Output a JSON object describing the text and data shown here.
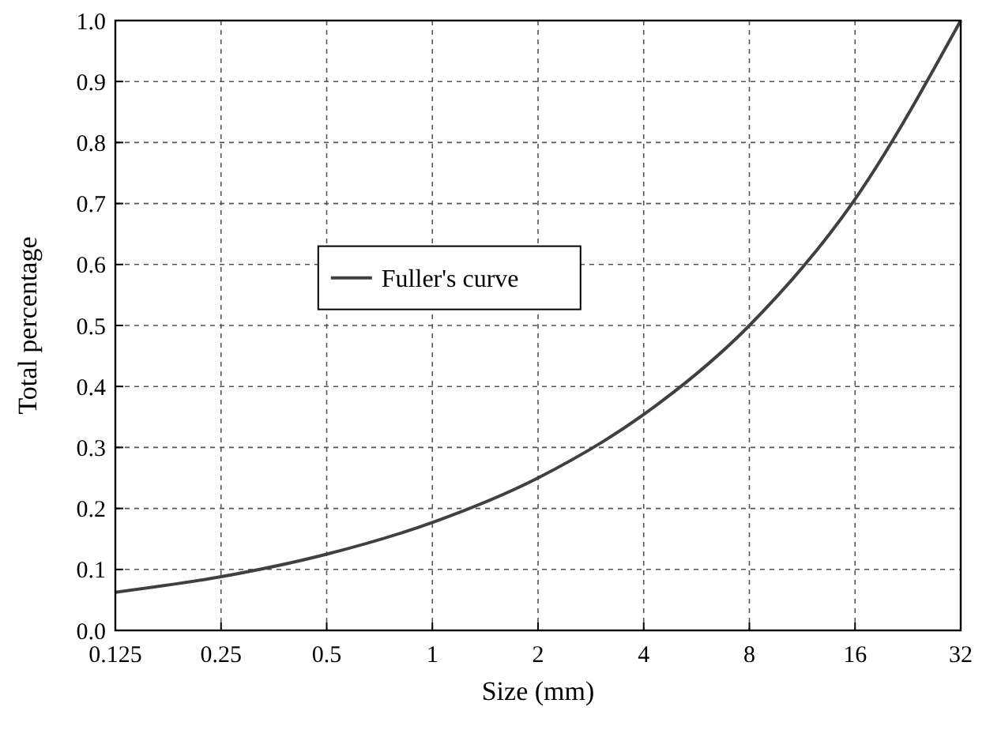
{
  "chart_data": {
    "type": "line",
    "xlabel": "Size (mm)",
    "ylabel": "Total percentage",
    "x": [
      0.125,
      0.25,
      0.5,
      1,
      2,
      4,
      8,
      16,
      32
    ],
    "series": [
      {
        "name": "Fuller's curve",
        "color": "#404040",
        "values": [
          0.0625,
          0.088,
          0.125,
          0.177,
          0.25,
          0.354,
          0.5,
          0.707,
          1.0
        ]
      }
    ],
    "xlim": [
      0.125,
      32
    ],
    "xticks": [
      0.125,
      0.25,
      0.5,
      1,
      2,
      4,
      8,
      16,
      32
    ],
    "ylim": [
      0,
      1
    ],
    "yticks": [
      {
        "value": 0,
        "label": "0.0"
      },
      0.1,
      0.2,
      0.3,
      0.4,
      0.5,
      0.6,
      0.7,
      0.8,
      0.9,
      {
        "value": 1,
        "label": "1.0"
      }
    ],
    "log": "x",
    "grid": true,
    "legend": "left",
    "marker": "none",
    "line_style": "solid"
  }
}
